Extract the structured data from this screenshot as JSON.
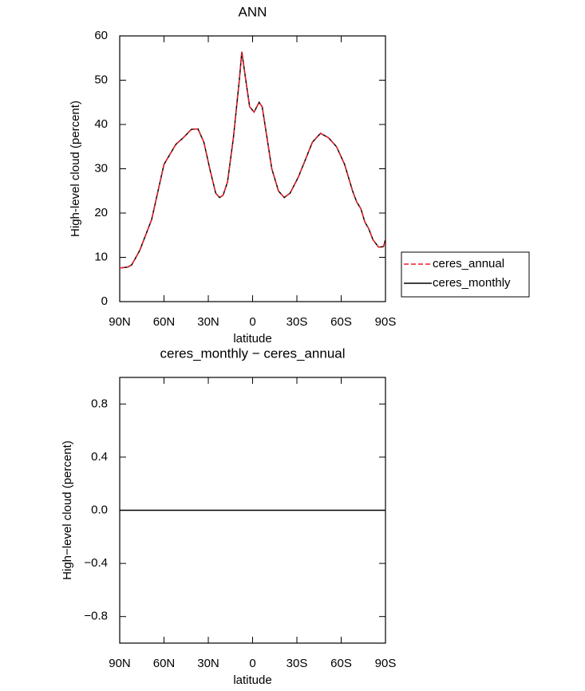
{
  "chart_data": [
    {
      "type": "line",
      "title": "ANN",
      "xlabel": "latitude",
      "ylabel": "High-level cloud (percent)",
      "x": [
        90,
        84.6,
        81.9,
        76.5,
        68.4,
        60,
        52,
        47,
        41.4,
        37,
        33,
        29,
        25,
        22.4,
        20,
        17,
        13,
        9,
        7.3,
        4.6,
        2,
        -1,
        -4.4,
        -6.5,
        -9.3,
        -13,
        -17.5,
        -21.4,
        -25.4,
        -30.8,
        -35.1,
        -40.5,
        -46,
        -51.4,
        -56.8,
        -62.3,
        -67.7,
        -70.5,
        -73.3,
        -76,
        -78.6,
        -81.5,
        -85.3,
        -88.6,
        -90
      ],
      "series": [
        {
          "name": "ceres_annual",
          "color": "#e8202a",
          "style": "dashed",
          "values": [
            7.6,
            7.8,
            8.3,
            11.5,
            18.5,
            31,
            35.5,
            37,
            38.9,
            39,
            36,
            30,
            24.5,
            23.5,
            24,
            27,
            37,
            50,
            56.4,
            50,
            44,
            42.8,
            45,
            44,
            38,
            30,
            25,
            23.5,
            24.5,
            28,
            31.5,
            36,
            38,
            37,
            35,
            31,
            25,
            22.5,
            21,
            18,
            16.5,
            14,
            12.3,
            12.4,
            14
          ]
        },
        {
          "name": "ceres_monthly",
          "color": "#000000",
          "style": "solid",
          "values": [
            7.6,
            7.8,
            8.3,
            11.5,
            18.5,
            31,
            35.5,
            37,
            38.9,
            39,
            36,
            30,
            24.5,
            23.5,
            24,
            27,
            37,
            50,
            56.4,
            50,
            44,
            42.8,
            45,
            44,
            38,
            30,
            25,
            23.5,
            24.5,
            28,
            31.5,
            36,
            38,
            37,
            35,
            31,
            25,
            22.5,
            21,
            18,
            16.5,
            14,
            12.3,
            12.4,
            14
          ]
        }
      ],
      "xlim": [
        90,
        -90
      ],
      "xticks": [
        {
          "value": 90,
          "label": "90N"
        },
        {
          "value": 60,
          "label": "60N"
        },
        {
          "value": 30,
          "label": "30N"
        },
        0,
        {
          "value": -30,
          "label": "30S"
        },
        {
          "value": -60,
          "label": "60S"
        },
        {
          "value": -90,
          "label": "90S"
        }
      ],
      "ylim": [
        0,
        60
      ],
      "yticks": [
        0,
        10,
        20,
        30,
        40,
        50,
        60
      ],
      "legend": "right"
    },
    {
      "type": "line",
      "title": "ceres_monthly − ceres_annual",
      "xlabel": "latitude",
      "ylabel": "High−level cloud (percent)",
      "x": [
        90,
        60,
        30,
        0,
        -30,
        -60,
        -90
      ],
      "series": [
        {
          "color": "#000000",
          "style": "solid",
          "values": [
            0,
            0,
            0,
            0,
            0,
            0,
            0
          ]
        }
      ],
      "xlim": [
        90,
        -90
      ],
      "xticks": [
        {
          "value": 90,
          "label": "90N"
        },
        {
          "value": 60,
          "label": "60N"
        },
        {
          "value": 30,
          "label": "30N"
        },
        0,
        {
          "value": -30,
          "label": "30S"
        },
        {
          "value": -60,
          "label": "60S"
        },
        {
          "value": -90,
          "label": "90S"
        }
      ],
      "ylim": [
        -1,
        1
      ],
      "yticks": [
        {
          "value": -0.8,
          "label": "−0.8"
        },
        {
          "value": -0.4,
          "label": "−0.4"
        },
        {
          "value": 0,
          "label": "0.0"
        },
        0.4,
        0.8
      ]
    }
  ]
}
